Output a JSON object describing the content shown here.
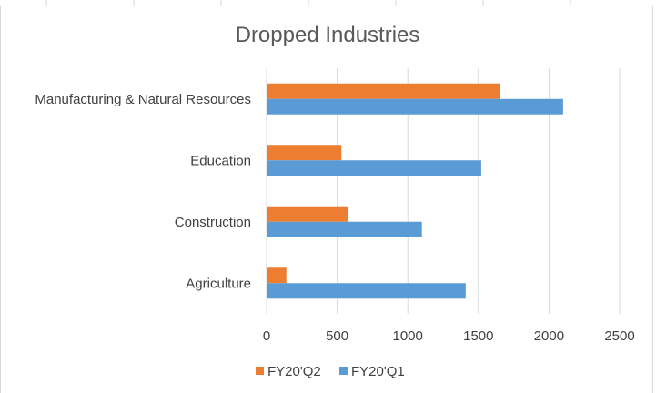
{
  "chart_data": {
    "type": "bar",
    "orientation": "horizontal",
    "title": "Dropped Industries",
    "categories": [
      "Manufacturing & Natural Resources",
      "Education",
      "Construction",
      "Agriculture"
    ],
    "series": [
      {
        "name": "FY20'Q2",
        "color": "#ED7D31",
        "values": [
          1650,
          530,
          580,
          140
        ]
      },
      {
        "name": "FY20'Q1",
        "color": "#5B9BD5",
        "values": [
          2100,
          1520,
          1100,
          1410
        ]
      }
    ],
    "xlim": [
      0,
      2500
    ],
    "xticks": [
      "0",
      "500",
      "1000",
      "1500",
      "2000",
      "2500"
    ],
    "grid": true,
    "legend_position": "bottom"
  }
}
